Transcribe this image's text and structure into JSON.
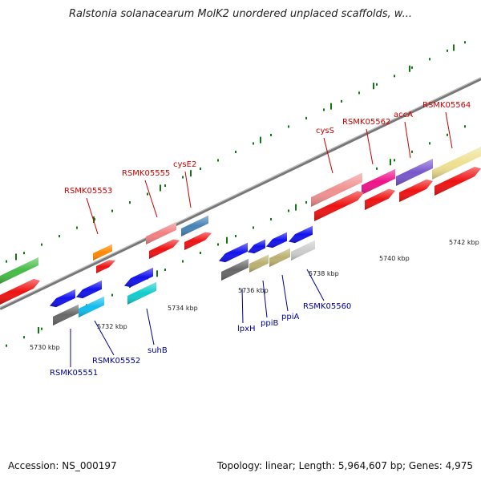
{
  "title": "Ralstonia solanacearum MolK2 unordered unplaced scaffolds, w...",
  "footer": {
    "accession": "Accession: NS_000197",
    "topology": "Topology: linear; Length: 5,964,607 bp; Genes: 4,975"
  },
  "colors": {
    "label_forward": "#cc0000",
    "label_reverse": "#000099",
    "backbone": "#888888",
    "tick_major": "#117711",
    "tick_minor": "#117711"
  },
  "kbp_ticks": [
    "5730 kbp",
    "5732 kbp",
    "5734 kbp",
    "5736 kbp",
    "5738 kbp",
    "5740 kbp",
    "5742 kbp"
  ],
  "genes_forward": [
    {
      "label": "RSMK05553"
    },
    {
      "label": "RSMK05555"
    },
    {
      "label": "cysE2"
    },
    {
      "label": "cysS"
    },
    {
      "label": "RSMK05562"
    },
    {
      "label": "accA"
    },
    {
      "label": "RSMK05564"
    }
  ],
  "genes_reverse": [
    {
      "label": "RSMK05551"
    },
    {
      "label": "RSMK05552"
    },
    {
      "label": "suhB"
    },
    {
      "label": "lpxH"
    },
    {
      "label": "ppiB"
    },
    {
      "label": "ppiA"
    },
    {
      "label": "RSMK05560"
    }
  ]
}
